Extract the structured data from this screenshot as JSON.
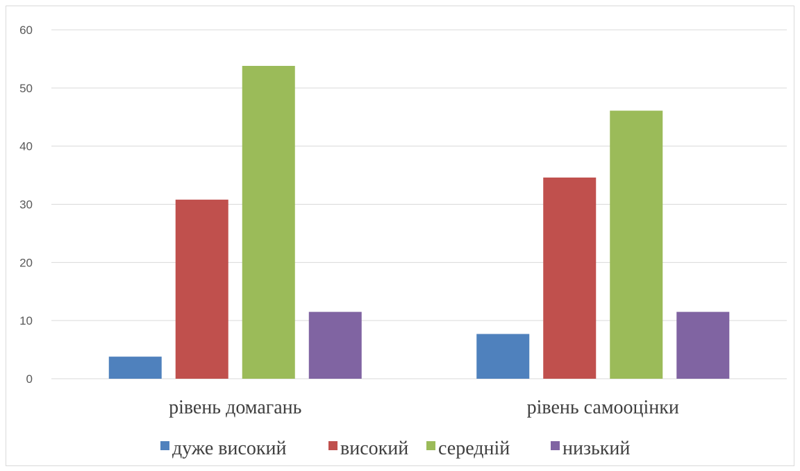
{
  "chart_data": {
    "type": "bar",
    "categories": [
      "рівень домагань",
      "рівень самооцінки"
    ],
    "series": [
      {
        "name": "дуже високий",
        "color": "#4f81bd",
        "values": [
          3.8,
          7.7
        ]
      },
      {
        "name": "високий",
        "color": "#c0504d",
        "values": [
          30.8,
          34.6
        ]
      },
      {
        "name": "середній",
        "color": "#9bbb59",
        "values": [
          53.8,
          46.1
        ]
      },
      {
        "name": "низький",
        "color": "#8064a2",
        "values": [
          11.5,
          11.5
        ]
      }
    ],
    "yticks": [
      "0",
      "10",
      "20",
      "30",
      "40",
      "50",
      "60"
    ],
    "ylim": [
      0,
      60
    ],
    "grid": true,
    "legend": "bottom"
  }
}
